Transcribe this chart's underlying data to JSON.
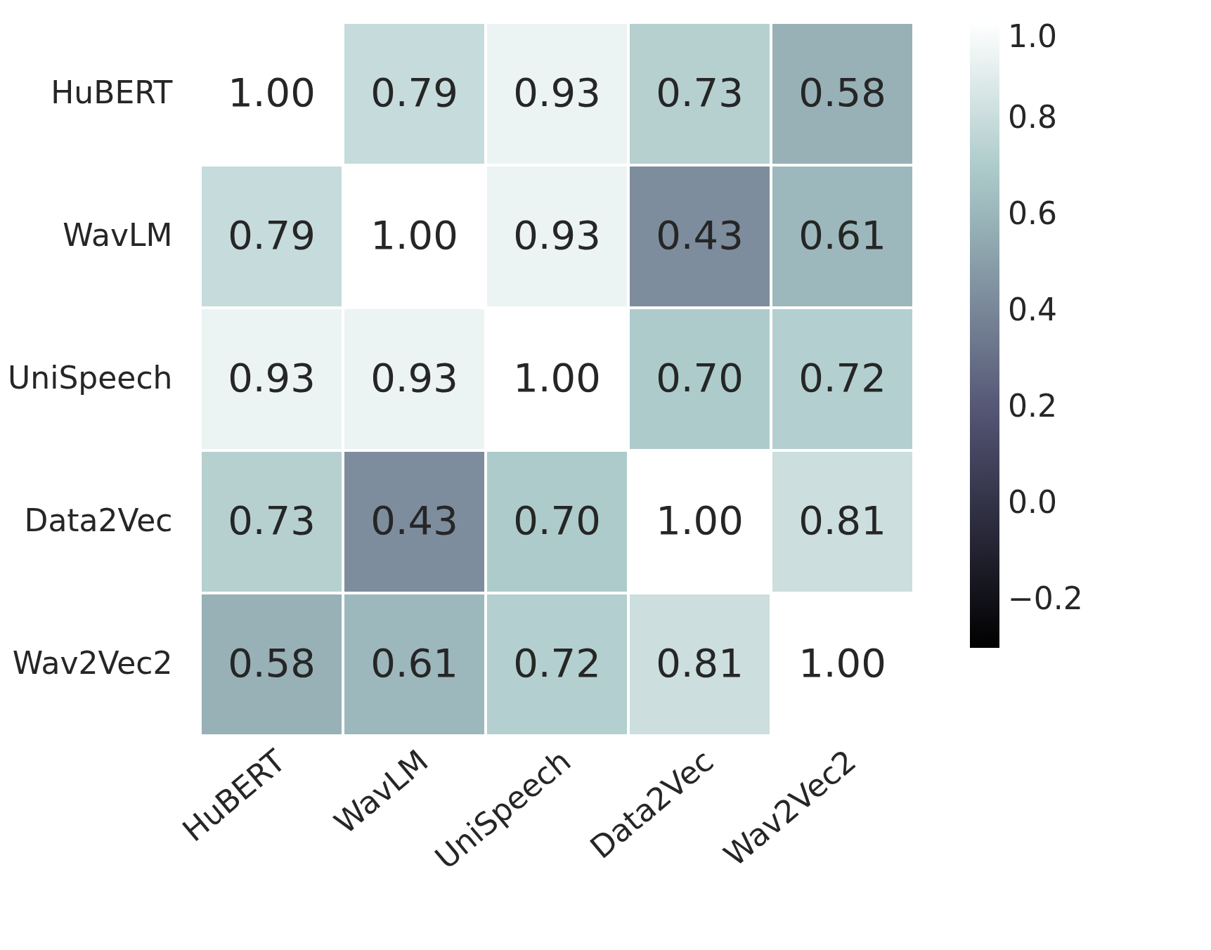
{
  "chart_data": {
    "type": "heatmap",
    "categories": [
      "HuBERT",
      "WavLM",
      "UniSpeech",
      "Data2Vec",
      "Wav2Vec2"
    ],
    "y_categories": [
      "HuBERT",
      "WavLM",
      "UniSpeech",
      "Data2Vec",
      "Wav2Vec2"
    ],
    "cells": [
      [
        1.0,
        0.79,
        0.93,
        0.73,
        0.58
      ],
      [
        0.79,
        1.0,
        0.93,
        0.43,
        0.61
      ],
      [
        0.93,
        0.93,
        1.0,
        0.7,
        0.72
      ],
      [
        0.73,
        0.43,
        0.7,
        1.0,
        0.81
      ],
      [
        0.58,
        0.61,
        0.72,
        0.81,
        1.0
      ]
    ],
    "cell_labels": [
      [
        "1.00",
        "0.79",
        "0.93",
        "0.73",
        "0.58"
      ],
      [
        "0.79",
        "1.00",
        "0.93",
        "0.43",
        "0.61"
      ],
      [
        "0.93",
        "0.93",
        "1.00",
        "0.70",
        "0.72"
      ],
      [
        "0.73",
        "0.43",
        "0.70",
        "1.00",
        "0.81"
      ],
      [
        "0.58",
        "0.61",
        "0.72",
        "0.81",
        "1.00"
      ]
    ],
    "clim": [
      -0.3,
      1.0
    ],
    "cticks": [
      {
        "value": -0.2,
        "label": "−0.2"
      },
      {
        "value": 0,
        "label": "0.0"
      },
      {
        "value": 0.2,
        "label": "0.2"
      },
      {
        "value": 0.4,
        "label": "0.4"
      },
      {
        "value": 0.6,
        "label": "0.6"
      },
      {
        "value": 0.8,
        "label": "0.8"
      },
      {
        "value": 1,
        "label": "1.0"
      }
    ]
  }
}
